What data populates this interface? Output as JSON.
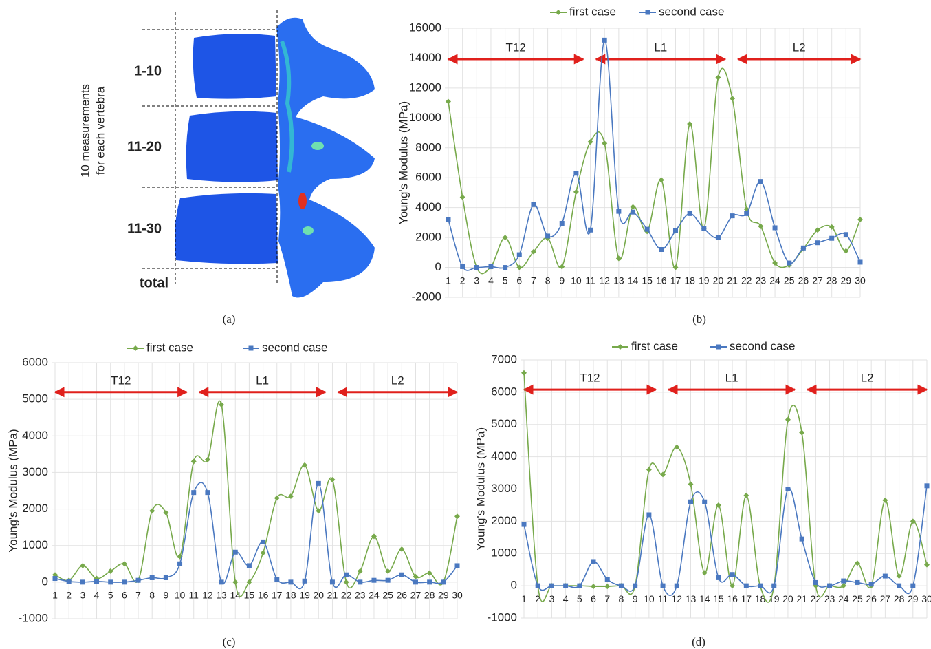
{
  "figure_a": {
    "side_label": [
      "10 measurements",
      "for each vertebra"
    ],
    "region_labels": [
      "1-10",
      "11-20",
      "11-30",
      "total"
    ],
    "caption": "(a)"
  },
  "chart_data": [
    {
      "type": "line",
      "caption": "(b)",
      "y_label": "Young's Modulus (MPa)",
      "categories": [
        "1",
        "2",
        "3",
        "4",
        "5",
        "6",
        "7",
        "8",
        "9",
        "10",
        "11",
        "12",
        "13",
        "14",
        "15",
        "16",
        "17",
        "18",
        "19",
        "20",
        "21",
        "22",
        "23",
        "24",
        "25",
        "26",
        "27",
        "28",
        "29",
        "30"
      ],
      "series": [
        {
          "name": "first case",
          "color": "#77a94b",
          "marker": "diamond",
          "values": [
            11100,
            4700,
            0,
            50,
            2000,
            0,
            1050,
            1950,
            50,
            5050,
            8400,
            8300,
            600,
            4050,
            2400,
            5850,
            0,
            9600,
            2600,
            12700,
            11300,
            3900,
            2750,
            300,
            150,
            1250,
            2500,
            2700,
            1100,
            3200
          ]
        },
        {
          "name": "second case",
          "color": "#4a78c0",
          "marker": "square",
          "values": [
            3200,
            50,
            0,
            50,
            0,
            850,
            4200,
            2100,
            2950,
            6300,
            2500,
            15200,
            3750,
            3700,
            2550,
            1200,
            2450,
            3600,
            2600,
            2000,
            3450,
            3600,
            5750,
            2650,
            300,
            1300,
            1650,
            1950,
            2200,
            350
          ]
        }
      ],
      "ylim": [
        -2000,
        16000
      ],
      "yticks": [
        -2000,
        0,
        2000,
        4000,
        6000,
        8000,
        10000,
        12000,
        14000,
        16000
      ],
      "grid": true,
      "legend": "top",
      "annotations": [
        "T12",
        "L1",
        "L2"
      ],
      "annotation_color": "#e0201c"
    },
    {
      "type": "line",
      "caption": "(c)",
      "y_label": "Young's Modulus (MPa)",
      "categories": [
        "1",
        "2",
        "3",
        "4",
        "5",
        "6",
        "7",
        "8",
        "9",
        "10",
        "11",
        "12",
        "13",
        "14",
        "15",
        "16",
        "17",
        "18",
        "19",
        "20",
        "21",
        "22",
        "23",
        "24",
        "25",
        "26",
        "27",
        "28",
        "29",
        "30"
      ],
      "series": [
        {
          "name": "first case",
          "color": "#77a94b",
          "marker": "diamond",
          "values": [
            200,
            50,
            450,
            100,
            300,
            500,
            50,
            1950,
            1900,
            700,
            3300,
            3350,
            4850,
            0,
            0,
            800,
            2300,
            2350,
            3200,
            1950,
            2800,
            0,
            300,
            1250,
            300,
            900,
            150,
            250,
            0,
            1800
          ]
        },
        {
          "name": "second case",
          "color": "#4a78c0",
          "marker": "square",
          "values": [
            100,
            20,
            0,
            20,
            0,
            0,
            50,
            120,
            120,
            500,
            2450,
            2450,
            0,
            820,
            450,
            1100,
            80,
            0,
            30,
            2700,
            0,
            200,
            0,
            50,
            50,
            200,
            0,
            0,
            0,
            450
          ]
        }
      ],
      "ylim": [
        -1000,
        6000
      ],
      "yticks": [
        -1000,
        0,
        1000,
        2000,
        3000,
        4000,
        5000,
        6000
      ],
      "grid": true,
      "legend": "top",
      "annotations": [
        "T12",
        "L1",
        "L2"
      ],
      "annotation_color": "#e0201c"
    },
    {
      "type": "line",
      "caption": "(d)",
      "y_label": "Young's Modulus (MPa)",
      "categories": [
        "1",
        "2",
        "3",
        "4",
        "5",
        "6",
        "7",
        "8",
        "9",
        "10",
        "11",
        "12",
        "13",
        "14",
        "15",
        "16",
        "17",
        "18",
        "19",
        "20",
        "21",
        "22",
        "23",
        "24",
        "25",
        "26",
        "27",
        "28",
        "29",
        "30"
      ],
      "series": [
        {
          "name": "first case",
          "color": "#77a94b",
          "marker": "diamond",
          "values": [
            6600,
            0,
            0,
            0,
            0,
            -20,
            -20,
            0,
            0,
            3600,
            3450,
            4300,
            3150,
            400,
            2500,
            0,
            2800,
            0,
            0,
            5150,
            4750,
            0,
            0,
            0,
            700,
            0,
            2650,
            300,
            2000,
            650
          ]
        },
        {
          "name": "second case",
          "color": "#4a78c0",
          "marker": "square",
          "values": [
            1900,
            0,
            0,
            0,
            0,
            750,
            200,
            0,
            0,
            2200,
            0,
            0,
            2600,
            2600,
            250,
            350,
            0,
            0,
            0,
            3000,
            1450,
            100,
            0,
            150,
            100,
            50,
            300,
            0,
            0,
            3100
          ]
        }
      ],
      "ylim": [
        -1000,
        7000
      ],
      "yticks": [
        -1000,
        0,
        1000,
        2000,
        3000,
        4000,
        5000,
        6000,
        7000
      ],
      "grid": true,
      "legend": "top",
      "annotations": [
        "T12",
        "L1",
        "L2"
      ],
      "annotation_color": "#e0201c"
    }
  ]
}
